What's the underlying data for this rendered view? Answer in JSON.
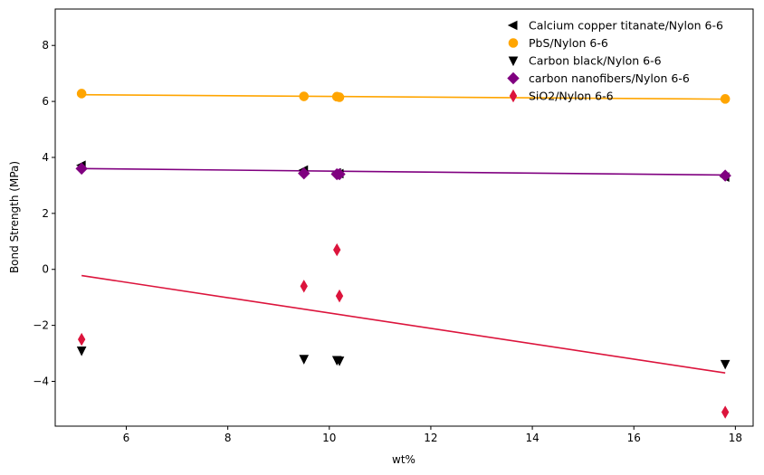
{
  "chart_data": {
    "type": "scatter",
    "xlabel": "wt%",
    "ylabel": "Bond Strength (MPa)",
    "xlim": [
      4.6,
      18.35
    ],
    "ylim": [
      -5.6,
      9.3
    ],
    "xticks": [
      6,
      8,
      10,
      12,
      14,
      16,
      18
    ],
    "yticks": [
      -4,
      -2,
      0,
      2,
      4,
      6,
      8
    ],
    "xtick_labels": [
      "6",
      "8",
      "10",
      "12",
      "14",
      "16",
      "18"
    ],
    "ytick_labels": [
      "−4",
      "−2",
      "0",
      "2",
      "4",
      "6",
      "8"
    ],
    "grid": false,
    "legend_position": "top-right",
    "series": [
      {
        "name": "Calcium copper titanate/Nylon 6-6",
        "marker": "triangle-left",
        "color": "#000000",
        "x": [
          5.12,
          9.5,
          10.15,
          10.2,
          17.8
        ],
        "y": [
          3.72,
          3.55,
          3.45,
          3.42,
          3.3
        ],
        "fit": null
      },
      {
        "name": "PbS/Nylon 6-6",
        "marker": "circle",
        "color": "#FFA500",
        "x": [
          5.12,
          9.5,
          10.15,
          10.2,
          17.8
        ],
        "y": [
          6.28,
          6.18,
          6.17,
          6.15,
          6.09
        ],
        "fit": {
          "x": [
            5.12,
            17.8
          ],
          "y": [
            6.24,
            6.08
          ]
        }
      },
      {
        "name": "Carbon black/Nylon 6-6",
        "marker": "triangle-down",
        "color": "#000000",
        "x": [
          5.12,
          9.5,
          10.15,
          10.2,
          17.8
        ],
        "y": [
          -2.9,
          -3.2,
          -3.24,
          -3.26,
          -3.38
        ],
        "fit": null
      },
      {
        "name": "carbon nanofibers/Nylon 6-6",
        "marker": "diamond",
        "color": "#800080",
        "x": [
          5.12,
          9.5,
          10.15,
          10.2,
          17.8
        ],
        "y": [
          3.6,
          3.43,
          3.4,
          3.4,
          3.35
        ],
        "fit": {
          "x": [
            5.12,
            17.8
          ],
          "y": [
            3.6,
            3.37
          ]
        }
      },
      {
        "name": "SiO2/Nylon 6-6",
        "marker": "thin-diamond",
        "color": "#DC143C",
        "x": [
          5.12,
          9.5,
          10.15,
          10.2,
          17.8
        ],
        "y": [
          -2.5,
          -0.6,
          0.7,
          -0.95,
          -5.1
        ],
        "fit": {
          "x": [
            5.12,
            17.8
          ],
          "y": [
            -0.22,
            -3.7
          ]
        }
      }
    ]
  }
}
